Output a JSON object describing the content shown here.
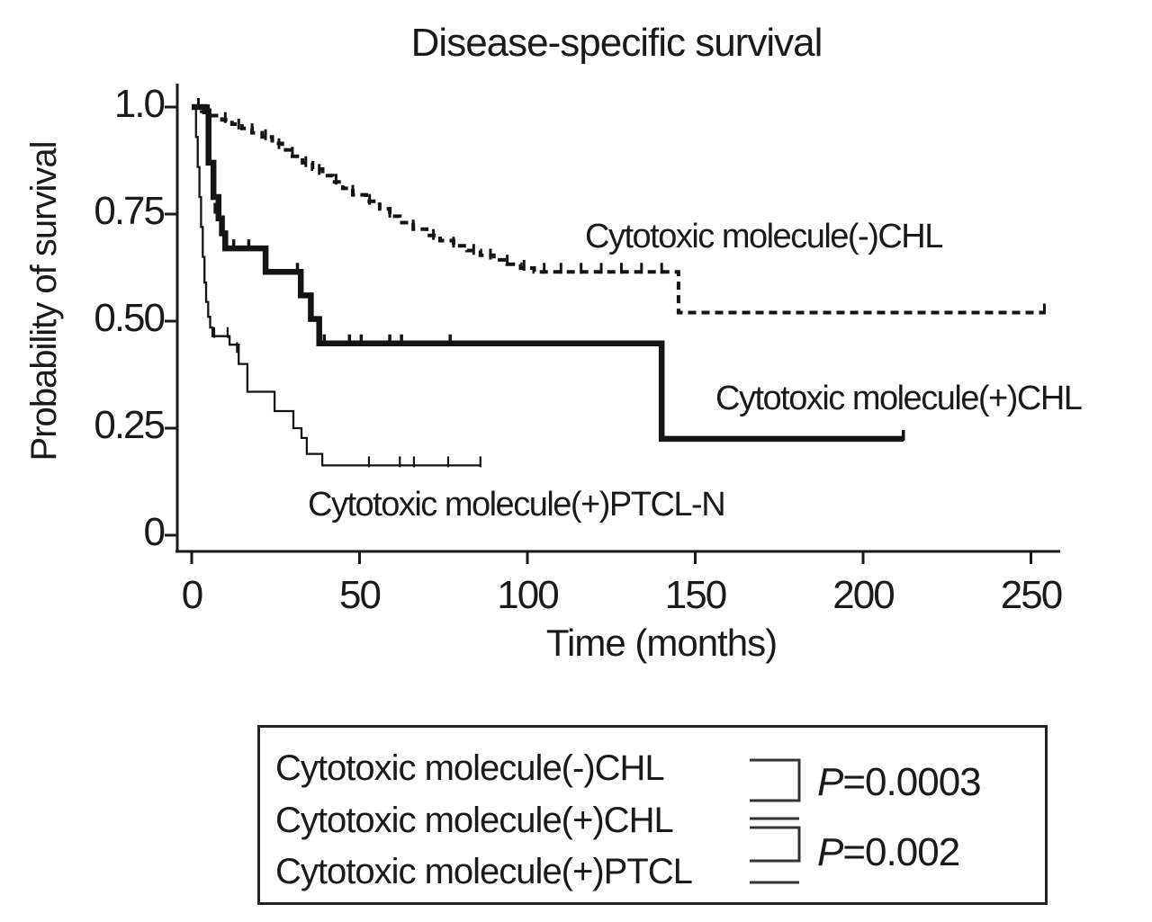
{
  "title": "Disease-specific survival",
  "y_axis": {
    "label": "Probability of survival",
    "ticks": [
      "1.0",
      "0.75",
      "0.50",
      "0.25",
      "0"
    ]
  },
  "x_axis": {
    "label": "Time (months)",
    "ticks": [
      "0",
      "50",
      "100",
      "150",
      "200",
      "250"
    ]
  },
  "curve_labels": {
    "cm_neg_chl": "Cytotoxic molecule(-)CHL",
    "cm_pos_chl": "Cytotoxic molecule(+)CHL",
    "cm_pos_ptcl_n": "Cytotoxic molecule(+)PTCL-N"
  },
  "legend": {
    "rows": [
      "Cytotoxic molecule(-)CHL",
      "Cytotoxic molecule(+)CHL",
      "Cytotoxic molecule(+)PTCL"
    ],
    "p_values": [
      "P=0.0003",
      "P=0.002"
    ]
  },
  "chart_data": {
    "type": "line",
    "subtype": "kaplan-meier-step",
    "title": "Disease-specific survival",
    "xlabel": "Time (months)",
    "ylabel": "Probability of survival",
    "xlim": [
      0,
      265
    ],
    "ylim": [
      0,
      1.05
    ],
    "x_tick_values": [
      0,
      50,
      100,
      150,
      200,
      250
    ],
    "y_tick_values": [
      1.0,
      0.75,
      0.5,
      0.25,
      0
    ],
    "grid": false,
    "legend_position": "boxed-below-plot",
    "series": [
      {
        "name": "Cytotoxic molecule(-)CHL",
        "line_style": "dashed",
        "steps": [
          [
            0,
            1.0
          ],
          [
            3,
            0.99
          ],
          [
            6,
            0.98
          ],
          [
            9,
            0.97
          ],
          [
            12,
            0.96
          ],
          [
            15,
            0.95
          ],
          [
            18,
            0.94
          ],
          [
            21,
            0.93
          ],
          [
            24,
            0.915
          ],
          [
            27,
            0.9
          ],
          [
            30,
            0.885
          ],
          [
            33,
            0.87
          ],
          [
            36,
            0.855
          ],
          [
            39,
            0.84
          ],
          [
            42,
            0.825
          ],
          [
            45,
            0.81
          ],
          [
            48,
            0.795
          ],
          [
            52,
            0.78
          ],
          [
            56,
            0.762
          ],
          [
            59,
            0.745
          ],
          [
            62,
            0.73
          ],
          [
            66,
            0.715
          ],
          [
            70,
            0.7
          ],
          [
            74,
            0.688
          ],
          [
            78,
            0.676
          ],
          [
            82,
            0.665
          ],
          [
            86,
            0.654
          ],
          [
            90,
            0.643
          ],
          [
            94,
            0.633
          ],
          [
            98,
            0.624
          ],
          [
            102,
            0.615
          ],
          [
            145,
            0.52
          ],
          [
            254,
            0.52
          ]
        ],
        "censor_ticks": [
          [
            2,
            1.0
          ],
          [
            5,
            0.985
          ],
          [
            10,
            0.967
          ],
          [
            14,
            0.952
          ],
          [
            18,
            0.941
          ],
          [
            22,
            0.927
          ],
          [
            26,
            0.906
          ],
          [
            30,
            0.886
          ],
          [
            34,
            0.864
          ],
          [
            38,
            0.846
          ],
          [
            43,
            0.823
          ],
          [
            48,
            0.797
          ],
          [
            53,
            0.776
          ],
          [
            59,
            0.746
          ],
          [
            66,
            0.716
          ],
          [
            72,
            0.694
          ],
          [
            78,
            0.676
          ],
          [
            84,
            0.659
          ],
          [
            89,
            0.648
          ],
          [
            94,
            0.634
          ],
          [
            99,
            0.622
          ],
          [
            105,
            0.615
          ],
          [
            110,
            0.615
          ],
          [
            116,
            0.615
          ],
          [
            122,
            0.615
          ],
          [
            128,
            0.615
          ],
          [
            134,
            0.615
          ],
          [
            140,
            0.615
          ],
          [
            254,
            0.52
          ]
        ]
      },
      {
        "name": "Cytotoxic molecule(+)CHL",
        "line_style": "thick",
        "steps": [
          [
            0,
            1.0
          ],
          [
            4,
            0.99
          ],
          [
            5,
            0.87
          ],
          [
            6.5,
            0.79
          ],
          [
            8,
            0.74
          ],
          [
            9,
            0.705
          ],
          [
            10,
            0.67
          ],
          [
            22,
            0.615
          ],
          [
            32.5,
            0.56
          ],
          [
            35.5,
            0.505
          ],
          [
            38,
            0.448
          ],
          [
            140,
            0.225
          ],
          [
            212,
            0.225
          ]
        ],
        "censor_ticks": [
          [
            7,
            0.755
          ],
          [
            12.5,
            0.67
          ],
          [
            17,
            0.67
          ],
          [
            31.5,
            0.615
          ],
          [
            39.5,
            0.448
          ],
          [
            47,
            0.448
          ],
          [
            50.5,
            0.448
          ],
          [
            59,
            0.448
          ],
          [
            62.5,
            0.448
          ],
          [
            77,
            0.448
          ],
          [
            212,
            0.225
          ]
        ]
      },
      {
        "name": "Cytotoxic molecule(+)PTCL-N",
        "line_style": "thin",
        "steps": [
          [
            0,
            1.0
          ],
          [
            1.3,
            0.93
          ],
          [
            1.8,
            0.86
          ],
          [
            2.3,
            0.79
          ],
          [
            2.8,
            0.72
          ],
          [
            3.3,
            0.65
          ],
          [
            3.8,
            0.59
          ],
          [
            4.3,
            0.545
          ],
          [
            4.9,
            0.51
          ],
          [
            5.5,
            0.485
          ],
          [
            6.2,
            0.465
          ],
          [
            11.3,
            0.445
          ],
          [
            14,
            0.4
          ],
          [
            16.6,
            0.335
          ],
          [
            24.7,
            0.29
          ],
          [
            30.3,
            0.25
          ],
          [
            32.7,
            0.227
          ],
          [
            34.3,
            0.19
          ],
          [
            38.9,
            0.163
          ],
          [
            86,
            0.163
          ]
        ],
        "censor_ticks": [
          [
            6.7,
            0.465
          ],
          [
            10.7,
            0.465
          ],
          [
            13.5,
            0.43
          ],
          [
            52.8,
            0.163
          ],
          [
            62,
            0.163
          ],
          [
            66.2,
            0.163
          ],
          [
            76.4,
            0.163
          ],
          [
            86,
            0.163
          ]
        ]
      }
    ],
    "comparisons": [
      {
        "between": [
          "Cytotoxic molecule(-)CHL",
          "Cytotoxic molecule(+)CHL"
        ],
        "p_value": "P=0.0003"
      },
      {
        "between": [
          "Cytotoxic molecule(+)CHL",
          "Cytotoxic molecule(+)PTCL"
        ],
        "p_value": "P=0.002"
      }
    ]
  }
}
